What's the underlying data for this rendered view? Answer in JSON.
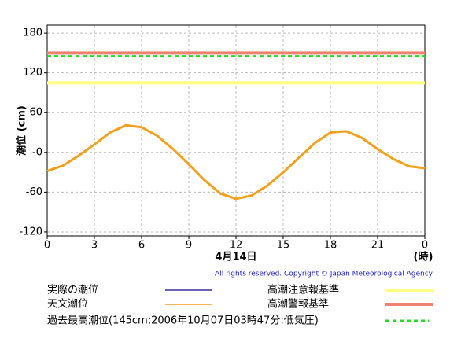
{
  "chart_data": {
    "type": "line",
    "y_label": "潮位 (cm)",
    "date_label": "4月14日",
    "x_unit": "(時)",
    "copyright": "All rights reserved. Copyright © Japan Meteorological Agency",
    "x": [
      0,
      1,
      2,
      3,
      4,
      5,
      6,
      7,
      8,
      9,
      10,
      11,
      12,
      13,
      14,
      15,
      16,
      17,
      18,
      19,
      20,
      21,
      22,
      23,
      24
    ],
    "series": [
      {
        "name": "実際の潮位",
        "color": "#3a2fa0",
        "values": [
          null,
          null,
          null,
          null,
          null,
          null,
          null,
          null,
          null,
          null,
          null,
          null,
          null,
          null,
          null,
          null,
          null,
          null,
          null,
          null,
          null,
          null,
          null,
          null,
          null
        ]
      },
      {
        "name": "天文潮位",
        "color": "#f5a01a",
        "values": [
          -28,
          -20,
          -5,
          12,
          30,
          41,
          38,
          25,
          5,
          -18,
          -42,
          -62,
          -70,
          -65,
          -50,
          -30,
          -8,
          14,
          30,
          32,
          22,
          5,
          -10,
          -21,
          -24
        ]
      }
    ],
    "reference_lines": [
      {
        "name": "高潮注意報基準",
        "color": "#ffff80",
        "value": 105,
        "dashed": false
      },
      {
        "name": "高潮警報基準",
        "color": "#f08070",
        "value": 150,
        "dashed": false
      },
      {
        "name": "過去最高潮位(145cm:2006年10月07日03時47分:低気圧)",
        "color": "#22dd22",
        "value": 145,
        "dashed": true
      }
    ],
    "xlim": [
      0,
      24
    ],
    "xticks": [
      0,
      3,
      6,
      9,
      12,
      15,
      18,
      21,
      {
        "value": 24,
        "label": "0"
      }
    ],
    "ylim": [
      -126,
      192
    ],
    "yticks": [
      {
        "value": -120,
        "label": "-120"
      },
      -60,
      {
        "value": 0,
        "label": "-0"
      },
      60,
      120,
      180
    ],
    "grid": true
  }
}
